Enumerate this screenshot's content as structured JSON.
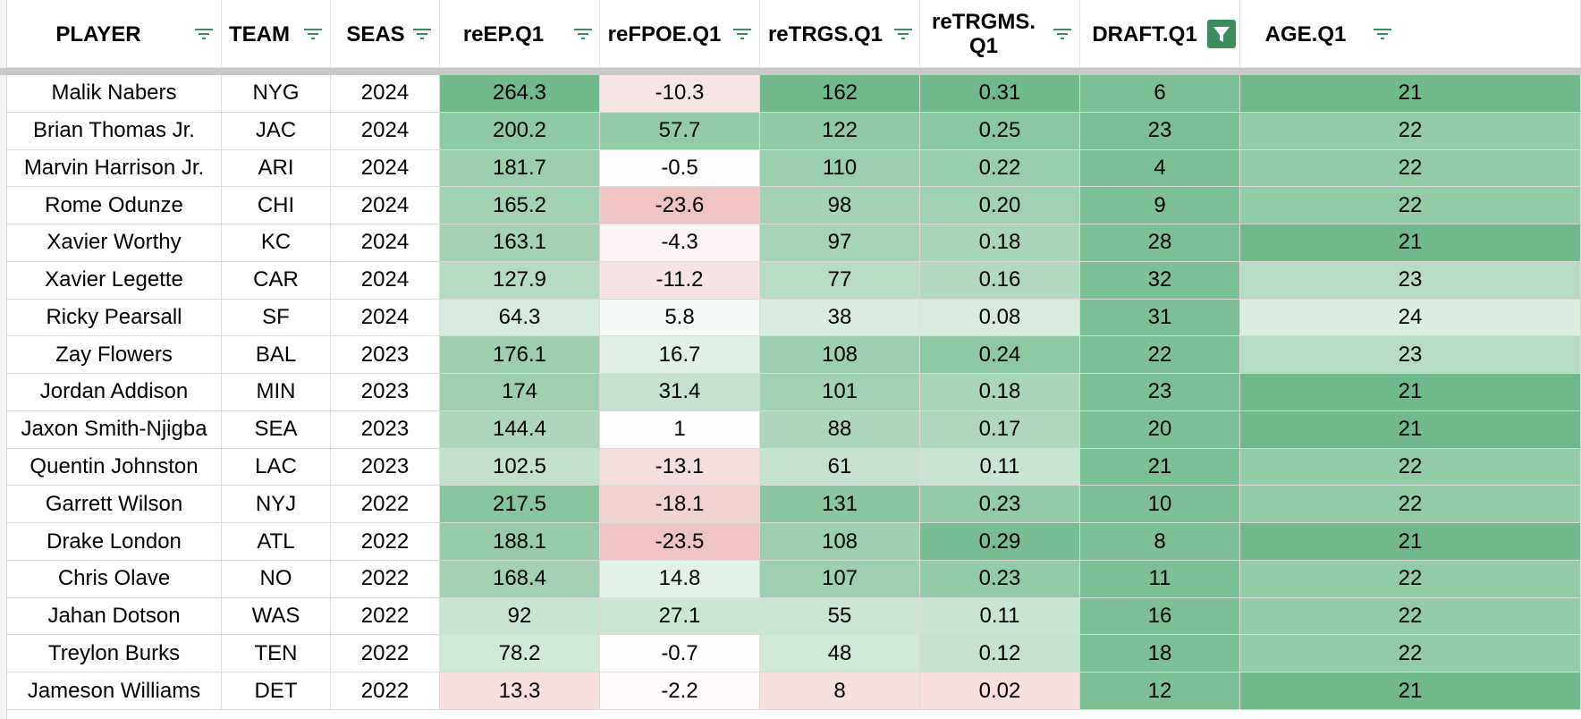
{
  "columns": [
    {
      "key": "player",
      "label": "PLAYER",
      "filter": "filter-lines-icon"
    },
    {
      "key": "team",
      "label": "TEAM",
      "filter": "filter-lines-icon"
    },
    {
      "key": "seas",
      "label": "SEAS",
      "filter": "filter-lines-icon"
    },
    {
      "key": "reep",
      "label": "reEP.Q1",
      "filter": "filter-lines-icon"
    },
    {
      "key": "refpoe",
      "label": "reFPOE.Q1",
      "filter": "filter-lines-icon"
    },
    {
      "key": "retrgs",
      "label": "reTRGS.Q1",
      "filter": "filter-lines-icon"
    },
    {
      "key": "retrgms",
      "label": "reTRGMS.\nQ1",
      "filter": "filter-lines-icon"
    },
    {
      "key": "draft",
      "label": "DRAFT.Q1",
      "filter": "filter-funnel-active-icon"
    },
    {
      "key": "age",
      "label": "AGE.Q1",
      "filter": "filter-lines-icon"
    }
  ],
  "rows": [
    {
      "player": "Malik Nabers",
      "team": "NYG",
      "seas": "2024",
      "reep": "264.3",
      "refpoe": "-10.3",
      "retrgs": "162",
      "retrgms": "0.31",
      "draft": "6",
      "age": "21"
    },
    {
      "player": "Brian Thomas Jr.",
      "team": "JAC",
      "seas": "2024",
      "reep": "200.2",
      "refpoe": "57.7",
      "retrgs": "122",
      "retrgms": "0.25",
      "draft": "23",
      "age": "22"
    },
    {
      "player": "Marvin Harrison Jr.",
      "team": "ARI",
      "seas": "2024",
      "reep": "181.7",
      "refpoe": "-0.5",
      "retrgs": "110",
      "retrgms": "0.22",
      "draft": "4",
      "age": "22"
    },
    {
      "player": "Rome Odunze",
      "team": "CHI",
      "seas": "2024",
      "reep": "165.2",
      "refpoe": "-23.6",
      "retrgs": "98",
      "retrgms": "0.20",
      "draft": "9",
      "age": "22"
    },
    {
      "player": "Xavier Worthy",
      "team": "KC",
      "seas": "2024",
      "reep": "163.1",
      "refpoe": "-4.3",
      "retrgs": "97",
      "retrgms": "0.18",
      "draft": "28",
      "age": "21"
    },
    {
      "player": "Xavier Legette",
      "team": "CAR",
      "seas": "2024",
      "reep": "127.9",
      "refpoe": "-11.2",
      "retrgs": "77",
      "retrgms": "0.16",
      "draft": "32",
      "age": "23"
    },
    {
      "player": "Ricky Pearsall",
      "team": "SF",
      "seas": "2024",
      "reep": "64.3",
      "refpoe": "5.8",
      "retrgs": "38",
      "retrgms": "0.08",
      "draft": "31",
      "age": "24"
    },
    {
      "player": "Zay Flowers",
      "team": "BAL",
      "seas": "2023",
      "reep": "176.1",
      "refpoe": "16.7",
      "retrgs": "108",
      "retrgms": "0.24",
      "draft": "22",
      "age": "23"
    },
    {
      "player": "Jordan Addison",
      "team": "MIN",
      "seas": "2023",
      "reep": "174",
      "refpoe": "31.4",
      "retrgs": "101",
      "retrgms": "0.18",
      "draft": "23",
      "age": "21"
    },
    {
      "player": "Jaxon Smith-Njigba",
      "team": "SEA",
      "seas": "2023",
      "reep": "144.4",
      "refpoe": "1",
      "retrgs": "88",
      "retrgms": "0.17",
      "draft": "20",
      "age": "21"
    },
    {
      "player": "Quentin Johnston",
      "team": "LAC",
      "seas": "2023",
      "reep": "102.5",
      "refpoe": "-13.1",
      "retrgs": "61",
      "retrgms": "0.11",
      "draft": "21",
      "age": "22"
    },
    {
      "player": "Garrett Wilson",
      "team": "NYJ",
      "seas": "2022",
      "reep": "217.5",
      "refpoe": "-18.1",
      "retrgs": "131",
      "retrgms": "0.23",
      "draft": "10",
      "age": "22"
    },
    {
      "player": "Drake London",
      "team": "ATL",
      "seas": "2022",
      "reep": "188.1",
      "refpoe": "-23.5",
      "retrgs": "108",
      "retrgms": "0.29",
      "draft": "8",
      "age": "21"
    },
    {
      "player": "Chris Olave",
      "team": "NO",
      "seas": "2022",
      "reep": "168.4",
      "refpoe": "14.8",
      "retrgs": "107",
      "retrgms": "0.23",
      "draft": "11",
      "age": "22"
    },
    {
      "player": "Jahan Dotson",
      "team": "WAS",
      "seas": "2022",
      "reep": "92",
      "refpoe": "27.1",
      "retrgs": "55",
      "retrgms": "0.11",
      "draft": "16",
      "age": "22"
    },
    {
      "player": "Treylon Burks",
      "team": "TEN",
      "seas": "2022",
      "reep": "78.2",
      "refpoe": "-0.7",
      "retrgs": "48",
      "retrgms": "0.12",
      "draft": "18",
      "age": "22"
    },
    {
      "player": "Jameson Williams",
      "team": "DET",
      "seas": "2022",
      "reep": "13.3",
      "refpoe": "-2.2",
      "retrgs": "8",
      "retrgms": "0.02",
      "draft": "12",
      "age": "21"
    }
  ],
  "colors": {
    "green_scale_max": "#6fb98a",
    "green_scale_min": "#ffffff",
    "red_scale_max": "#efc4c3",
    "filter_icon": "#3d8c5f",
    "filter_active_bg": "#3d8c5f"
  }
}
